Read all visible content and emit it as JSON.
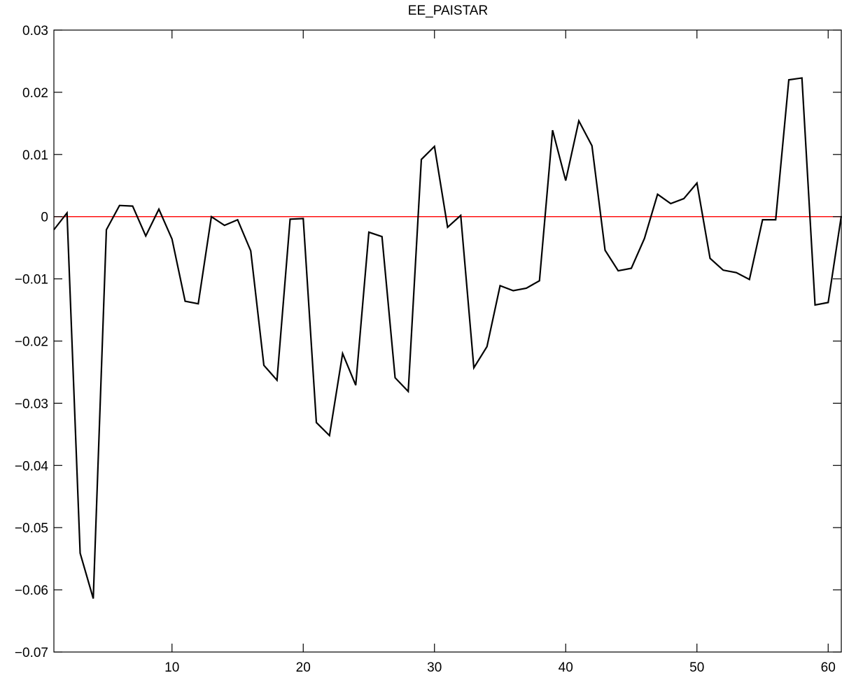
{
  "chart_data": {
    "type": "line",
    "title": "EE_PAISTAR",
    "xlabel": "",
    "ylabel": "",
    "xlim": [
      1,
      61
    ],
    "ylim": [
      -0.07,
      0.03
    ],
    "x_ticks": [
      10,
      20,
      30,
      40,
      50,
      60
    ],
    "x_tick_labels": [
      "10",
      "20",
      "30",
      "40",
      "50",
      "60"
    ],
    "y_ticks": [
      0.03,
      0.02,
      0.01,
      0,
      -0.01,
      -0.02,
      -0.03,
      -0.04,
      -0.05,
      -0.06,
      -0.07
    ],
    "y_tick_labels": [
      "0.03",
      "0.02",
      "0.01",
      "0",
      "−0.01",
      "−0.02",
      "−0.03",
      "−0.04",
      "−0.05",
      "−0.06",
      "−0.07"
    ],
    "grid": false,
    "reference_line": {
      "y": 0,
      "color": "#ff0000"
    },
    "series": [
      {
        "color": "#000000",
        "x": [
          1,
          2,
          3,
          4,
          5,
          6,
          7,
          8,
          9,
          10,
          11,
          12,
          13,
          14,
          15,
          16,
          17,
          18,
          19,
          20,
          21,
          22,
          23,
          24,
          25,
          26,
          27,
          28,
          29,
          30,
          31,
          32,
          33,
          34,
          35,
          36,
          37,
          38,
          39,
          40,
          41,
          42,
          43,
          44,
          45,
          46,
          47,
          48,
          49,
          50,
          51,
          52,
          53,
          54,
          55,
          56,
          57,
          58,
          59,
          60,
          61
        ],
        "values": [
          -0.0021,
          0.0006,
          -0.0541,
          -0.0614,
          -0.0021,
          0.0018,
          0.0017,
          -0.0031,
          0.0012,
          -0.0036,
          -0.0136,
          -0.014,
          0.0,
          -0.0014,
          -0.0005,
          -0.0055,
          -0.0239,
          -0.0263,
          -0.0004,
          -0.0003,
          -0.0331,
          -0.0352,
          -0.022,
          -0.0271,
          -0.0025,
          -0.0032,
          -0.0259,
          -0.0281,
          0.0092,
          0.0113,
          -0.0017,
          0.0002,
          -0.0243,
          -0.0209,
          -0.0111,
          -0.0119,
          -0.0115,
          -0.0103,
          0.0139,
          0.0058,
          0.0154,
          0.0114,
          -0.0054,
          -0.0087,
          -0.0083,
          -0.0035,
          0.0036,
          0.0021,
          0.0029,
          0.0054,
          -0.0067,
          -0.0086,
          -0.009,
          -0.0101,
          -0.0005,
          -0.0005,
          0.022,
          0.0223,
          -0.0142,
          -0.0138,
          0.0001
        ]
      }
    ]
  }
}
